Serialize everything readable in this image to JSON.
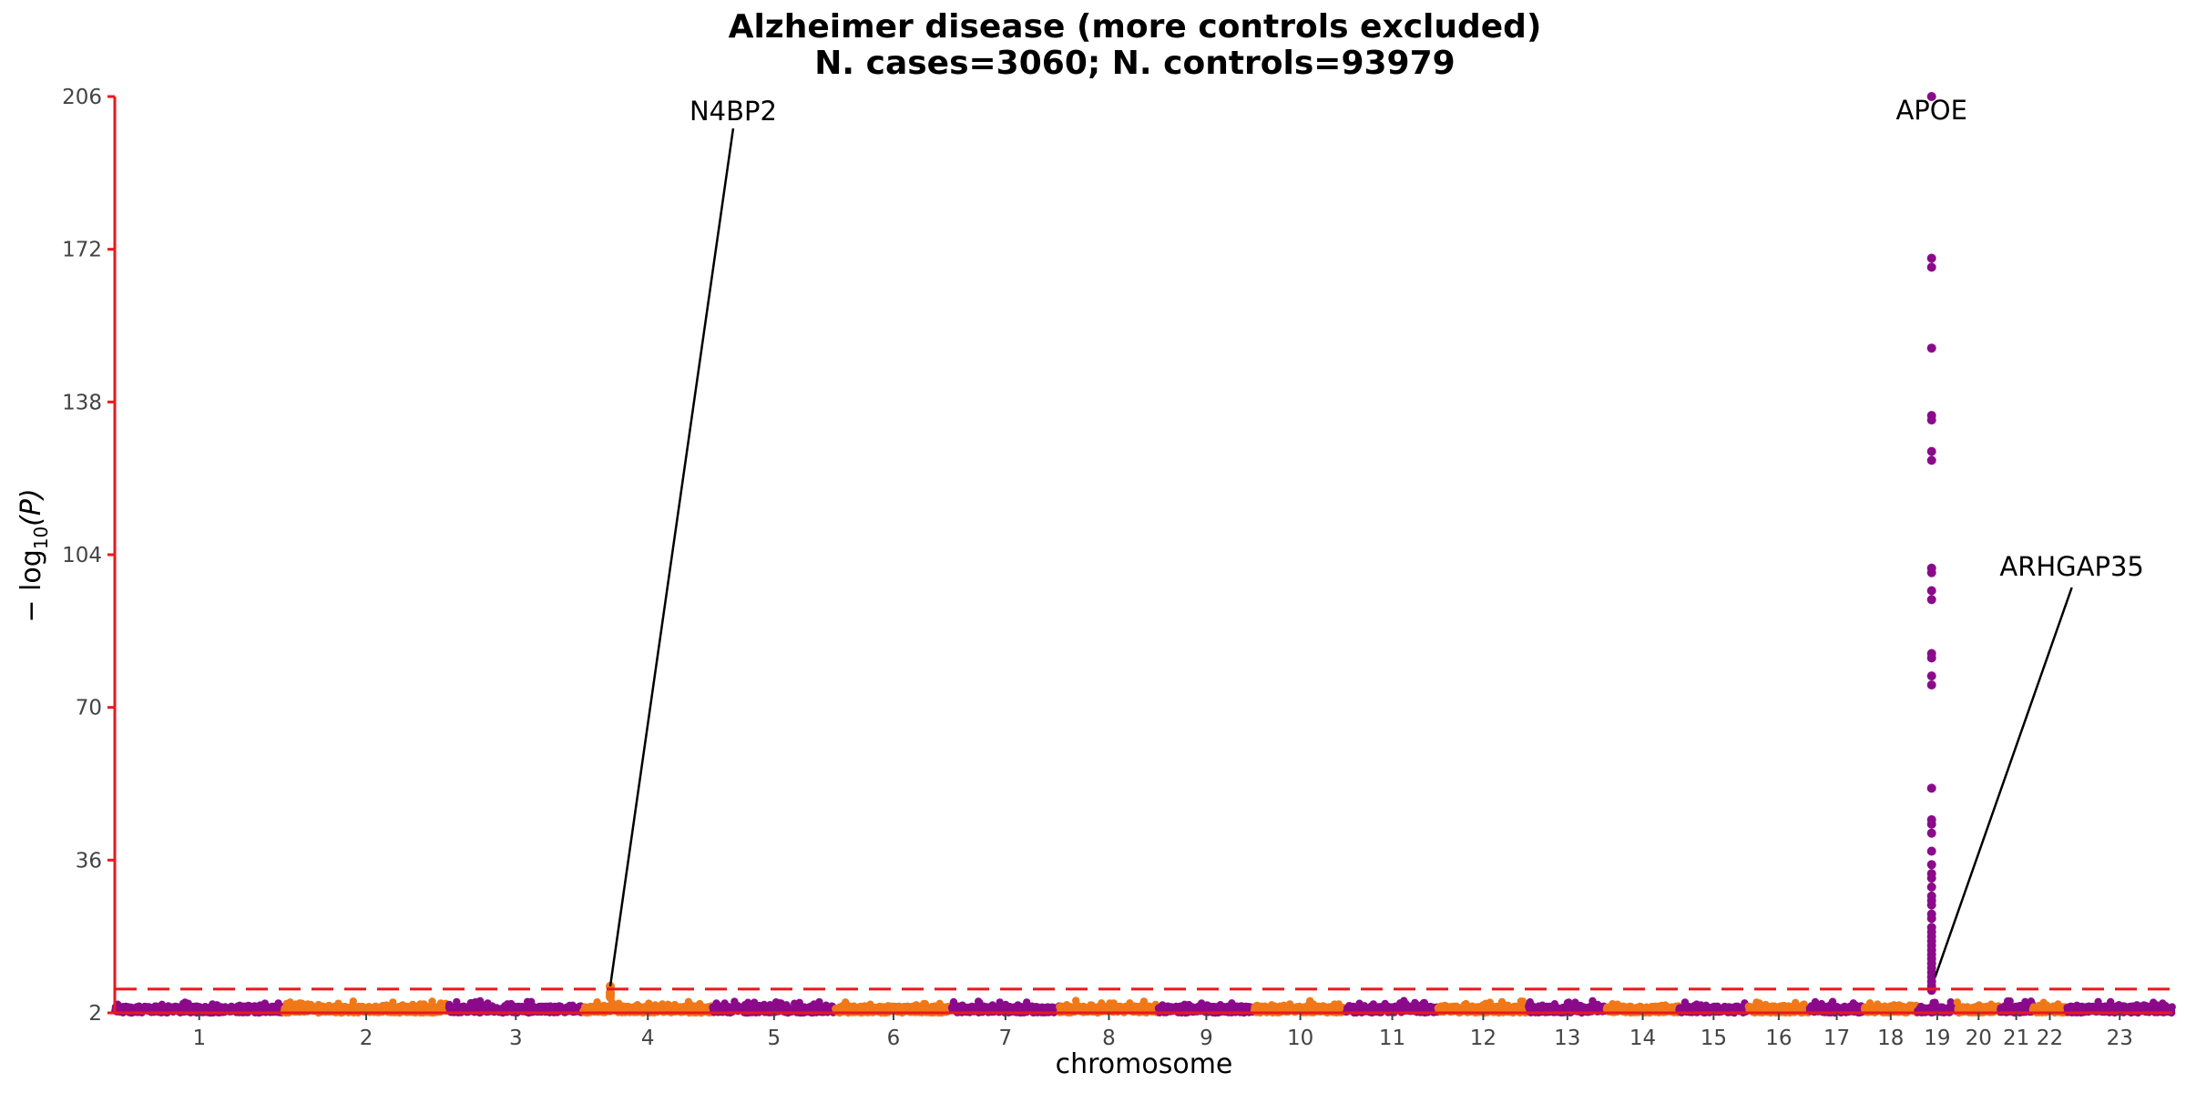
{
  "chart_data": {
    "type": "scatter",
    "subtype": "manhattan",
    "title_line1": "Alzheimer disease (more controls excluded)",
    "title_line2": "N. cases=3060; N. controls=93979",
    "xlabel": "chromosome",
    "ylabel_prefix": "− log",
    "ylabel_sub": "10",
    "ylabel_suffix": "(P)",
    "ylim": [
      2,
      206
    ],
    "yticks": [
      "2",
      "36",
      "70",
      "104",
      "138",
      "172",
      "206"
    ],
    "significance_threshold": 7.3,
    "threshold_color": "#e8191d",
    "axis_color": "#e8191d",
    "colors": [
      "#8b0a8b",
      "#f07818"
    ],
    "chromosomes": [
      {
        "label": "1",
        "length": 249
      },
      {
        "label": "2",
        "length": 243
      },
      {
        "label": "3",
        "length": 198
      },
      {
        "label": "4",
        "length": 191
      },
      {
        "label": "5",
        "length": 181
      },
      {
        "label": "6",
        "length": 171
      },
      {
        "label": "7",
        "length": 159
      },
      {
        "label": "8",
        "length": 146
      },
      {
        "label": "9",
        "length": 141
      },
      {
        "label": "10",
        "length": 136
      },
      {
        "label": "11",
        "length": 135
      },
      {
        "label": "12",
        "length": 133
      },
      {
        "label": "13",
        "length": 115
      },
      {
        "label": "14",
        "length": 107
      },
      {
        "label": "15",
        "length": 102
      },
      {
        "label": "16",
        "length": 90
      },
      {
        "label": "17",
        "length": 81
      },
      {
        "label": "18",
        "length": 78
      },
      {
        "label": "19",
        "length": 59
      },
      {
        "label": "20",
        "length": 63
      },
      {
        "label": "21",
        "length": 48
      },
      {
        "label": "22",
        "length": 51
      },
      {
        "label": "23",
        "length": 155
      }
    ],
    "background_levels": [
      3.5,
      4.8
    ],
    "peaks": [
      {
        "chrom": "19",
        "pos": 0.36,
        "values": [
          206,
          170,
          168,
          150,
          135,
          134,
          127,
          125,
          101,
          100,
          96,
          94,
          82,
          81,
          77,
          75,
          52,
          45,
          44,
          42,
          38,
          35,
          33,
          32,
          30,
          28,
          27,
          26,
          24,
          23,
          21,
          20,
          19,
          18,
          17,
          16,
          15,
          14,
          13,
          12,
          11,
          10,
          9,
          8,
          7.5,
          7
        ]
      },
      {
        "chrom": "4",
        "pos": 0.21,
        "values": [
          7.9,
          6.5,
          6.0,
          5.5
        ]
      }
    ],
    "annotations": [
      {
        "gene": "N4BP2",
        "chrom": "4",
        "pos": 0.21,
        "y": 7.9
      },
      {
        "gene": "APOE",
        "chrom": "19",
        "pos": 0.36,
        "y": 206
      },
      {
        "gene": "ARHGAP35",
        "chrom": "19",
        "pos": 0.45,
        "y": 10
      }
    ]
  }
}
